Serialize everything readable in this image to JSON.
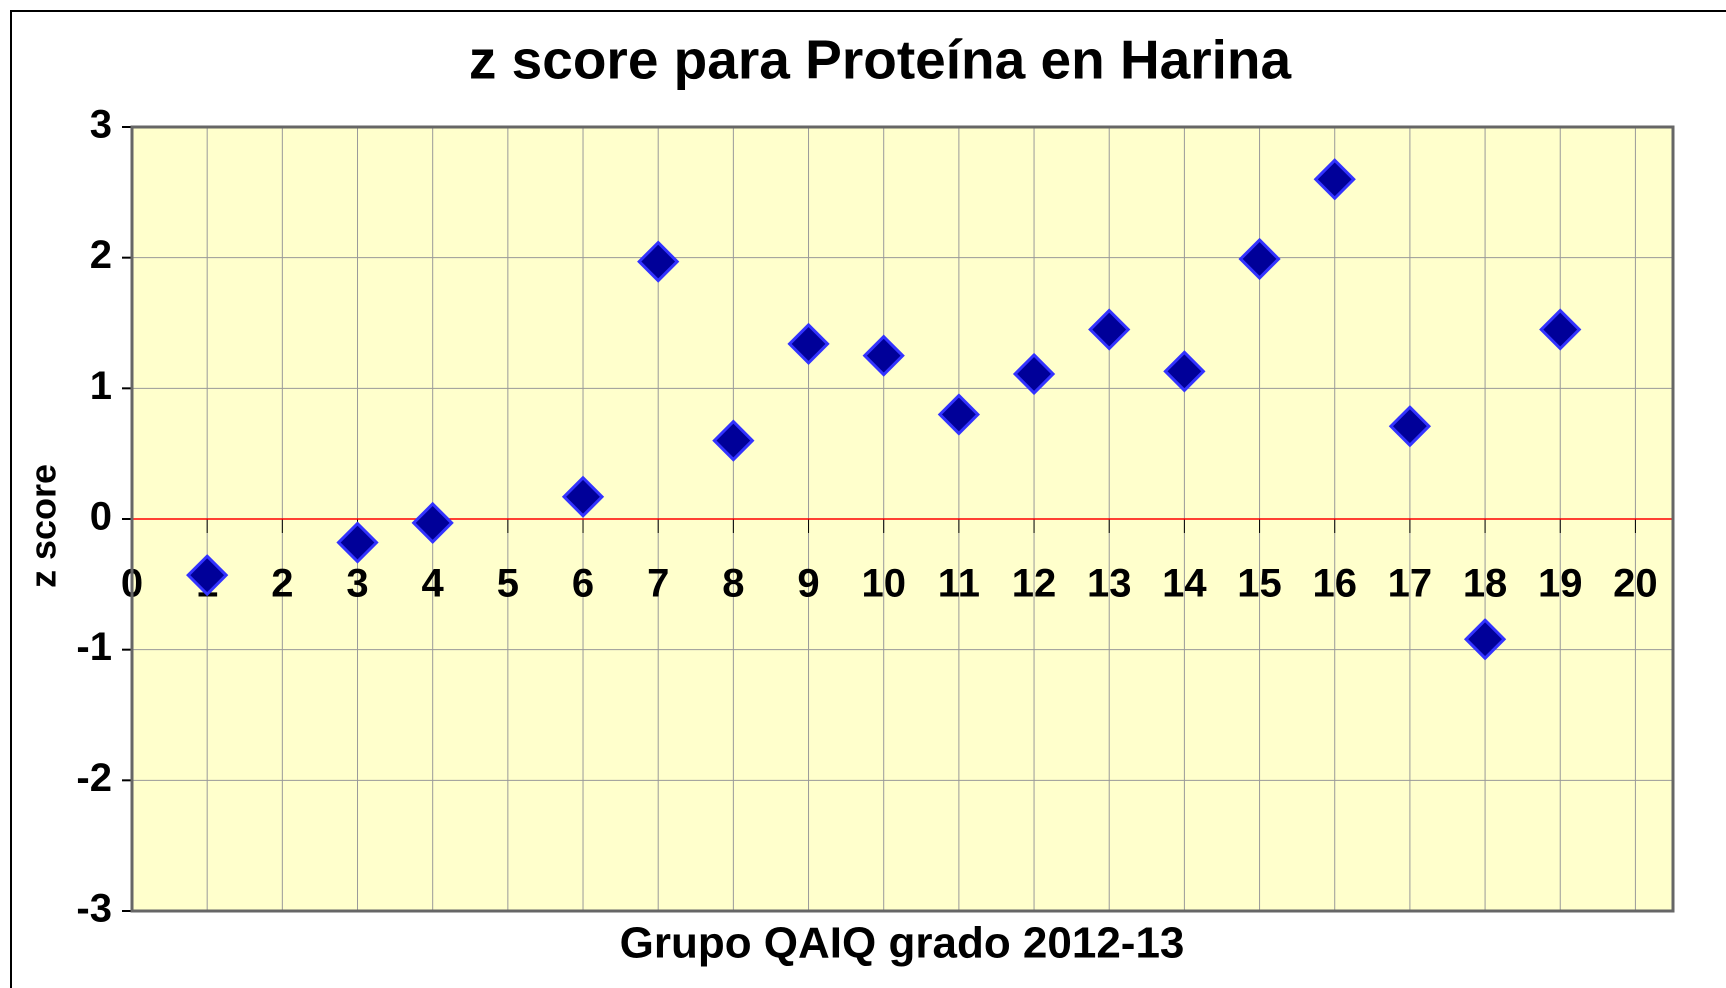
{
  "chart_data": {
    "type": "scatter",
    "title": "z score para Proteína en Harina",
    "x_label": "Grupo QAIQ grado 2012-13",
    "y_label": "z score",
    "series": [
      {
        "name": "z score",
        "color": "#000099",
        "x": [
          1,
          3,
          4,
          6,
          7,
          8,
          9,
          10,
          11,
          12,
          13,
          14,
          15,
          16,
          17,
          18,
          19
        ],
        "values": [
          -0.43,
          -0.18,
          -0.03,
          0.17,
          1.97,
          0.6,
          1.34,
          1.25,
          0.8,
          1.11,
          1.45,
          1.13,
          1.99,
          2.6,
          0.71,
          -0.92,
          1.45
        ]
      }
    ],
    "xlim": [
      0,
      20.5
    ],
    "xticks": [
      0,
      1,
      2,
      3,
      4,
      5,
      6,
      7,
      8,
      9,
      10,
      11,
      12,
      13,
      14,
      15,
      16,
      17,
      18,
      19,
      20
    ],
    "ylim": [
      -3,
      3
    ],
    "yticks": [
      -3,
      -2,
      -1,
      0,
      1,
      2,
      3
    ],
    "grid": true
  }
}
